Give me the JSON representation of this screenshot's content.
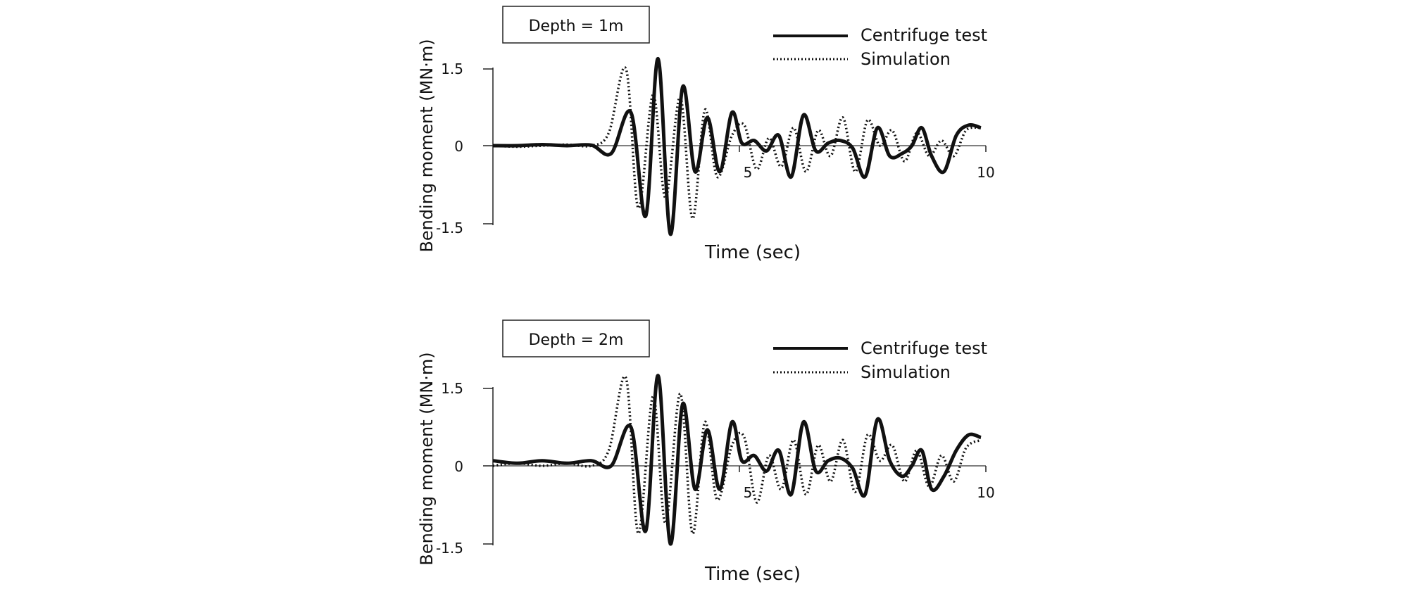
{
  "chart_data": [
    {
      "type": "line",
      "depth_label": "Depth = 1m",
      "xlabel": "Time (sec)",
      "ylabel": "Bending moment (MN·m)",
      "xlim": [
        0,
        10
      ],
      "ylim": [
        -1.5,
        1.5
      ],
      "xticks": [
        "5",
        "10"
      ],
      "yticks": [
        "1.5",
        "0",
        "-1.5"
      ],
      "legend_position": "top-right",
      "series": [
        {
          "name": "Centrifuge test",
          "style": "solid",
          "x": [
            0.0,
            0.5,
            1.0,
            1.5,
            2.0,
            2.4,
            2.8,
            3.1,
            3.35,
            3.6,
            3.85,
            4.1,
            4.35,
            4.6,
            4.85,
            5.05,
            5.3,
            5.55,
            5.8,
            6.05,
            6.3,
            6.55,
            6.8,
            7.05,
            7.3,
            7.55,
            7.8,
            8.05,
            8.3,
            8.5,
            8.7,
            8.9,
            9.15,
            9.4,
            9.65,
            9.9
          ],
          "y": [
            0.0,
            0.0,
            0.02,
            0.0,
            0.01,
            -0.15,
            0.65,
            -1.35,
            1.7,
            -1.7,
            1.15,
            -0.5,
            0.55,
            -0.5,
            0.65,
            0.05,
            0.1,
            -0.1,
            0.2,
            -0.6,
            0.6,
            -0.1,
            0.05,
            0.1,
            -0.05,
            -0.6,
            0.35,
            -0.2,
            -0.15,
            0.0,
            0.35,
            -0.2,
            -0.5,
            0.2,
            0.4,
            0.35
          ]
        },
        {
          "name": "Simulation",
          "style": "dotted",
          "x": [
            0.0,
            0.5,
            1.0,
            1.5,
            2.0,
            2.35,
            2.7,
            2.95,
            3.25,
            3.5,
            3.8,
            4.05,
            4.3,
            4.55,
            4.85,
            5.1,
            5.35,
            5.6,
            5.85,
            6.1,
            6.35,
            6.6,
            6.85,
            7.1,
            7.35,
            7.6,
            7.85,
            8.1,
            8.35,
            8.6,
            8.85,
            9.1,
            9.35,
            9.6,
            9.9
          ],
          "y": [
            0.0,
            -0.02,
            0.0,
            0.02,
            0.0,
            0.25,
            1.5,
            -1.2,
            1.0,
            -1.0,
            0.95,
            -1.4,
            0.7,
            -0.6,
            0.2,
            0.4,
            -0.45,
            0.15,
            -0.4,
            0.35,
            -0.5,
            0.3,
            -0.2,
            0.55,
            -0.5,
            0.5,
            0.0,
            0.3,
            -0.3,
            0.25,
            -0.2,
            0.1,
            -0.2,
            0.3,
            0.35
          ]
        }
      ]
    },
    {
      "type": "line",
      "depth_label": "Depth = 2m",
      "xlabel": "Time (sec)",
      "ylabel": "Bending moment (MN·m)",
      "xlim": [
        0,
        10
      ],
      "ylim": [
        -1.5,
        1.5
      ],
      "xticks": [
        "5",
        "10"
      ],
      "yticks": [
        "1.5",
        "0",
        "-1.5"
      ],
      "legend_position": "top-right",
      "series": [
        {
          "name": "Centrifuge test",
          "style": "solid",
          "x": [
            0.0,
            0.5,
            1.0,
            1.5,
            2.0,
            2.4,
            2.8,
            3.1,
            3.35,
            3.6,
            3.85,
            4.1,
            4.35,
            4.6,
            4.85,
            5.05,
            5.3,
            5.55,
            5.8,
            6.05,
            6.3,
            6.55,
            6.8,
            7.05,
            7.3,
            7.55,
            7.8,
            8.05,
            8.3,
            8.5,
            8.7,
            8.9,
            9.15,
            9.4,
            9.65,
            9.9
          ],
          "y": [
            0.1,
            0.05,
            0.1,
            0.05,
            0.1,
            0.0,
            0.75,
            -1.25,
            1.75,
            -1.5,
            1.2,
            -0.45,
            0.7,
            -0.45,
            0.85,
            0.1,
            0.2,
            -0.1,
            0.3,
            -0.55,
            0.85,
            -0.1,
            0.1,
            0.15,
            -0.05,
            -0.55,
            0.9,
            0.1,
            -0.2,
            0.0,
            0.3,
            -0.45,
            -0.2,
            0.3,
            0.6,
            0.55
          ]
        },
        {
          "name": "Simulation",
          "style": "dotted",
          "x": [
            0.0,
            0.5,
            1.0,
            1.5,
            2.0,
            2.35,
            2.7,
            2.95,
            3.25,
            3.5,
            3.8,
            4.05,
            4.3,
            4.55,
            4.85,
            5.1,
            5.35,
            5.6,
            5.85,
            6.1,
            6.35,
            6.6,
            6.85,
            7.1,
            7.35,
            7.6,
            7.85,
            8.1,
            8.35,
            8.6,
            8.85,
            9.1,
            9.35,
            9.6,
            9.9
          ],
          "y": [
            0.0,
            0.05,
            0.0,
            0.05,
            0.0,
            0.3,
            1.7,
            -1.3,
            1.35,
            -1.1,
            1.4,
            -1.3,
            0.85,
            -0.65,
            0.4,
            0.55,
            -0.7,
            0.2,
            -0.45,
            0.5,
            -0.55,
            0.4,
            -0.3,
            0.5,
            -0.5,
            0.6,
            0.1,
            0.4,
            -0.3,
            0.3,
            -0.4,
            0.2,
            -0.3,
            0.35,
            0.5
          ]
        }
      ]
    }
  ]
}
